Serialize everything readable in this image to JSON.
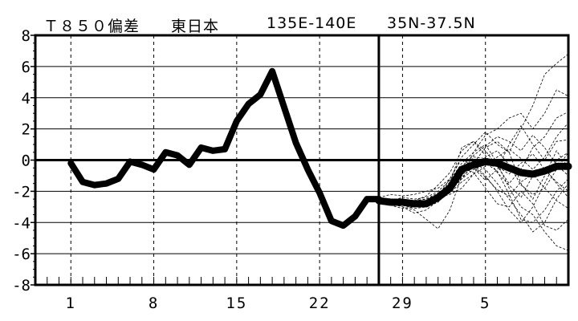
{
  "title": {
    "variable": "Ｔ８５０偏差",
    "region": "東日本",
    "longitude": "135E-140E",
    "latitude": "35N-37.5N"
  },
  "chart_data": {
    "type": "line",
    "title": "Ｔ８５０偏差　東日本　135E-140E 35N-37.5N",
    "xlabel": "",
    "ylabel": "",
    "x_ticks": [
      "1",
      "8",
      "15",
      "22",
      "29",
      "5"
    ],
    "y_ticks": [
      8,
      6,
      4,
      2,
      0,
      -2,
      -4,
      -6,
      -8
    ],
    "ylim": [
      -8,
      8
    ],
    "x_range_day_index": [
      -2,
      43
    ],
    "analysis_end_day_index": 27,
    "grid": true,
    "series": [
      {
        "role": "observed",
        "x": [
          1,
          2,
          3,
          4,
          5,
          6,
          7,
          8,
          9,
          10,
          11,
          12,
          13,
          14,
          15,
          16,
          17,
          18,
          19,
          20,
          21,
          22,
          23,
          24,
          25,
          26,
          27
        ],
        "values": [
          -0.2,
          -1.4,
          -1.6,
          -1.5,
          -1.2,
          -0.1,
          -0.3,
          -0.6,
          0.5,
          0.3,
          -0.3,
          0.8,
          0.6,
          0.7,
          2.5,
          3.6,
          4.2,
          5.7,
          3.4,
          1.1,
          -0.6,
          -2.1,
          -3.9,
          -4.2,
          -3.6,
          -2.5,
          -2.5
        ]
      },
      {
        "role": "ensemble-mean",
        "x": [
          27,
          28,
          29,
          30,
          31,
          32,
          33,
          34,
          35,
          36,
          37,
          38,
          39,
          40,
          41,
          42,
          43
        ],
        "values": [
          -2.6,
          -2.7,
          -2.7,
          -2.8,
          -2.8,
          -2.4,
          -1.8,
          -0.6,
          -0.3,
          -0.1,
          -0.2,
          -0.5,
          -0.8,
          -0.9,
          -0.7,
          -0.4,
          -0.4
        ]
      }
    ],
    "ensemble_members": [
      [
        -2.4,
        -2.2,
        -2.3,
        -2.2,
        -2.0,
        -1.8,
        -1.2,
        0.2,
        1.0,
        1.8,
        1.0,
        0.5,
        2.0,
        3.5,
        5.5,
        6.2,
        6.8
      ],
      [
        -2.5,
        -2.6,
        -2.4,
        -2.5,
        -2.4,
        -2.0,
        -1.3,
        -0.2,
        0.5,
        1.6,
        2.0,
        2.7,
        3.0,
        2.0,
        3.0,
        4.5,
        4.1
      ],
      [
        -2.7,
        -2.6,
        -2.7,
        -2.6,
        -2.5,
        -2.2,
        -1.5,
        0.8,
        1.2,
        0.6,
        -0.4,
        -1.5,
        -0.6,
        0.8,
        1.5,
        2.7,
        3.1
      ],
      [
        -2.6,
        -2.9,
        -3.1,
        -3.0,
        -2.8,
        -2.3,
        -1.2,
        0.1,
        -0.5,
        -1.3,
        -0.6,
        1.0,
        2.2,
        1.0,
        0.0,
        1.2,
        1.3
      ],
      [
        -2.8,
        -2.7,
        -3.0,
        -3.4,
        -3.2,
        -2.6,
        -1.8,
        -0.8,
        -0.3,
        -1.0,
        -2.0,
        -3.2,
        -4.0,
        -3.0,
        -1.5,
        0.0,
        0.5
      ],
      [
        -2.5,
        -2.8,
        -3.0,
        -3.2,
        -3.8,
        -4.4,
        -3.2,
        -1.0,
        -0.2,
        0.8,
        1.2,
        0.5,
        -1.5,
        -2.5,
        -1.0,
        0.6,
        -0.5
      ],
      [
        -2.6,
        -2.6,
        -2.6,
        -2.9,
        -3.0,
        -2.5,
        -2.0,
        -1.2,
        -0.2,
        -0.6,
        -1.5,
        -2.5,
        -3.5,
        -4.6,
        -4.0,
        -2.5,
        -1.5
      ],
      [
        -2.7,
        -2.6,
        -2.8,
        -2.7,
        -2.6,
        -2.2,
        -1.4,
        -0.5,
        -0.8,
        -1.8,
        -2.8,
        -3.0,
        -2.0,
        -2.8,
        -4.2,
        -4.5,
        -3.8
      ],
      [
        -2.5,
        -2.7,
        -2.9,
        -2.9,
        -3.0,
        -2.6,
        -2.0,
        -0.9,
        0.5,
        1.0,
        -0.2,
        -1.8,
        -3.0,
        -3.5,
        -4.6,
        -5.5,
        -5.8
      ],
      [
        -2.6,
        -2.8,
        -2.5,
        -2.6,
        -2.3,
        -1.6,
        -0.8,
        0.6,
        1.2,
        0.3,
        -0.8,
        -1.6,
        -2.4,
        -1.0,
        -0.5,
        -1.5,
        -2.4
      ],
      [
        -2.6,
        -2.7,
        -2.6,
        -2.8,
        -2.7,
        -2.4,
        -2.2,
        -1.8,
        -0.9,
        0.2,
        0.6,
        -0.3,
        -1.6,
        -2.2,
        -1.8,
        -0.6,
        0.5
      ],
      [
        -2.7,
        -2.8,
        -2.9,
        -3.1,
        -3.0,
        -2.7,
        -1.9,
        -1.2,
        -0.6,
        -0.2,
        -0.7,
        -2.2,
        -3.8,
        -4.0,
        -3.2,
        -2.0,
        -1.2
      ],
      [
        -2.5,
        -2.6,
        -2.7,
        -2.6,
        -2.5,
        -2.1,
        -1.6,
        -0.4,
        0.3,
        0.9,
        1.5,
        1.2,
        0.6,
        1.6,
        0.8,
        -0.3,
        -1.0
      ],
      [
        -2.6,
        -2.7,
        -2.8,
        -3.0,
        -2.9,
        -2.5,
        -1.7,
        -0.7,
        0.2,
        0.1,
        -0.4,
        -0.9,
        -0.2,
        0.4,
        -0.6,
        -1.4,
        -2.0
      ],
      [
        -2.6,
        -2.5,
        -2.5,
        -2.7,
        -2.6,
        -2.3,
        -1.8,
        -1.1,
        -0.4,
        -1.1,
        -1.9,
        -2.3,
        -1.4,
        -0.9,
        -1.8,
        -2.6,
        -3.1
      ],
      [
        -2.7,
        -2.8,
        -2.9,
        -3.0,
        -2.8,
        -2.5,
        -2.1,
        -1.4,
        -0.9,
        -0.4,
        0.2,
        0.7,
        0.1,
        -0.6,
        0.2,
        1.5,
        2.4
      ]
    ]
  }
}
